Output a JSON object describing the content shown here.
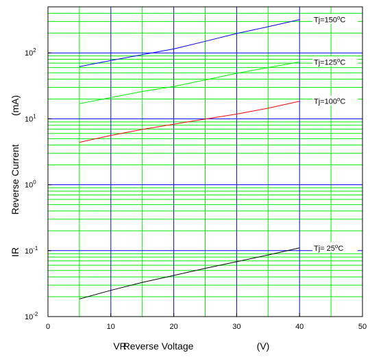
{
  "chart_data": {
    "type": "line",
    "x_axis": {
      "label_parts": [
        "VR",
        "Reverse Voltage",
        "(V)"
      ],
      "lim": [
        0,
        50
      ],
      "ticks": [
        0,
        10,
        20,
        30,
        40,
        50
      ],
      "tick_labels": [
        "0",
        "10",
        "20",
        "30",
        "40",
        "50"
      ]
    },
    "y_axis": {
      "label_parts": [
        "IR",
        "Reverse Current",
        "(mA)"
      ],
      "lim": [
        0.01,
        500
      ],
      "scale": "log",
      "ticks": [
        0.01,
        0.1,
        1,
        10,
        100
      ],
      "tick_labels": [
        {
          "base": "10",
          "exp": "-2"
        },
        {
          "base": "10",
          "exp": "-1"
        },
        {
          "base": "10",
          "exp": "0"
        },
        {
          "base": "10",
          "exp": "1"
        },
        {
          "base": "10",
          "exp": "2"
        }
      ]
    },
    "grid": true,
    "colors": {
      "major_grid": "#0000ff",
      "minor_grid": "#00ee00",
      "frame": "#000000"
    },
    "series": [
      {
        "name": "Tj=150°C",
        "label": {
          "pre": "Tj=150",
          "deg": "o",
          "post": "C"
        },
        "color": "#0000ff",
        "x": [
          5,
          10,
          15,
          20,
          25,
          30,
          35,
          40
        ],
        "y": [
          62,
          77,
          94,
          115,
          150,
          197,
          250,
          320
        ]
      },
      {
        "name": "Tj=125°C",
        "label": {
          "pre": "Tj=125",
          "deg": "o",
          "post": "C"
        },
        "color": "#00ee00",
        "x": [
          5,
          10,
          15,
          20,
          25,
          30,
          35,
          40
        ],
        "y": [
          17,
          21,
          26,
          31,
          39,
          49,
          60,
          73
        ]
      },
      {
        "name": "Tj=100°C",
        "label": {
          "pre": "Tj=100",
          "deg": "o",
          "post": "C"
        },
        "color": "#ff0000",
        "x": [
          5,
          10,
          15,
          20,
          25,
          30,
          35,
          40
        ],
        "y": [
          4.4,
          5.6,
          6.9,
          8.3,
          9.9,
          11.8,
          14.5,
          18.5
        ]
      },
      {
        "name": "Tj=25°C",
        "label": {
          "pre": "Tj= 25",
          "deg": "o",
          "post": "C"
        },
        "color": "#000000",
        "x": [
          5,
          10,
          15,
          20,
          25,
          30,
          35,
          40
        ],
        "y": [
          0.0185,
          0.025,
          0.033,
          0.042,
          0.054,
          0.068,
          0.086,
          0.11
        ]
      }
    ]
  }
}
